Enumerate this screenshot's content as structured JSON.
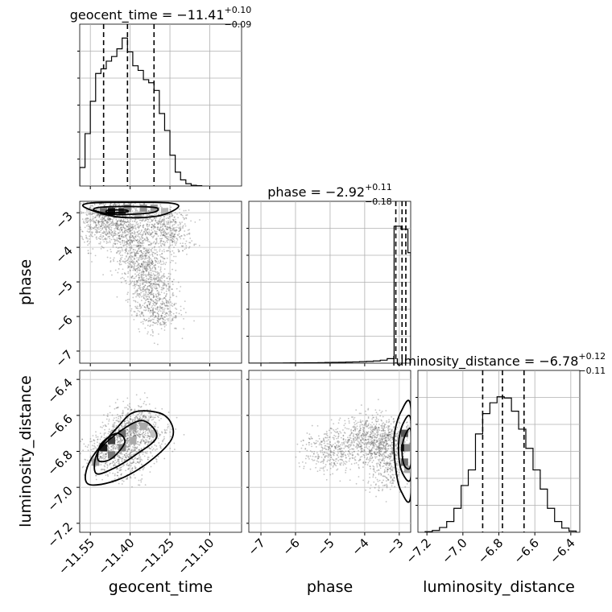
{
  "chart_data": {
    "type": "scatter",
    "subtype": "corner-plot",
    "grid": true,
    "parameters": [
      {
        "name": "geocent_time",
        "title": {
          "prefix": "geocent_time = ",
          "value": "−11.41",
          "plus": "+0.10",
          "minus": "−0.09"
        },
        "range": [
          -11.59,
          -10.98
        ],
        "ticks": [
          -11.55,
          -11.4,
          -11.25,
          -11.1
        ],
        "tick_labels": [
          "−11.55",
          "−11.40",
          "−11.25",
          "−11.10"
        ],
        "quantiles": [
          -11.5,
          -11.41,
          -11.31
        ],
        "hist_edges": [
          -11.59,
          -11.57,
          -11.55,
          -11.53,
          -11.51,
          -11.49,
          -11.47,
          -11.45,
          -11.43,
          -11.41,
          -11.39,
          -11.37,
          -11.35,
          -11.33,
          -11.31,
          -11.29,
          -11.27,
          -11.25,
          -11.23,
          -11.21,
          -11.19,
          -11.17,
          -11.15,
          -11.13
        ],
        "hist_counts": [
          120,
          340,
          550,
          730,
          760,
          810,
          840,
          890,
          960,
          870,
          780,
          750,
          690,
          670,
          620,
          470,
          360,
          200,
          90,
          40,
          15,
          5,
          2
        ],
        "hist_max": 1050
      },
      {
        "name": "phase",
        "title": {
          "prefix": "phase = ",
          "value": "−2.92",
          "plus": "+0.11",
          "minus": "−0.18"
        },
        "range": [
          -7.35,
          -2.67
        ],
        "ticks": [
          -7,
          -6,
          -5,
          -4,
          -3
        ],
        "tick_labels": [
          "−7",
          "−6",
          "−5",
          "−4",
          "−3"
        ],
        "quantiles": [
          -3.1,
          -2.92,
          -2.81
        ],
        "hist_edges": [
          -7.35,
          -7.15,
          -6.95,
          -6.75,
          -6.55,
          -6.35,
          -6.15,
          -5.95,
          -5.75,
          -5.55,
          -5.35,
          -5.15,
          -4.95,
          -4.75,
          -4.55,
          -4.35,
          -4.15,
          -3.95,
          -3.75,
          -3.55,
          -3.35,
          -3.15,
          -2.95,
          -2.75,
          -2.67
        ],
        "hist_counts": [
          1,
          1,
          2,
          3,
          5,
          7,
          9,
          11,
          13,
          15,
          18,
          22,
          26,
          30,
          35,
          40,
          48,
          58,
          72,
          95,
          145,
          4400,
          4300,
          3550
        ],
        "hist_max": 5200
      },
      {
        "name": "luminosity_distance",
        "title": {
          "prefix": "luminosity_distance = ",
          "value": "−6.78",
          "plus": "+0.12",
          "minus": "−0.11"
        },
        "range": [
          -7.25,
          -6.35
        ],
        "ticks": [
          -7.2,
          -7.0,
          -6.8,
          -6.6,
          -6.4
        ],
        "tick_labels": [
          "−7.2",
          "−7.0",
          "−6.8",
          "−6.6",
          "−6.4"
        ],
        "quantiles": [
          -6.89,
          -6.78,
          -6.66
        ],
        "hist_edges": [
          -7.21,
          -7.17,
          -7.13,
          -7.09,
          -7.05,
          -7.01,
          -6.97,
          -6.93,
          -6.89,
          -6.85,
          -6.81,
          -6.77,
          -6.73,
          -6.69,
          -6.65,
          -6.61,
          -6.57,
          -6.53,
          -6.49,
          -6.45,
          -6.41,
          -6.37
        ],
        "hist_counts": [
          5,
          15,
          40,
          90,
          200,
          390,
          520,
          820,
          990,
          1080,
          1130,
          1120,
          1010,
          860,
          700,
          520,
          360,
          200,
          90,
          35,
          10
        ],
        "hist_max": 1350
      }
    ],
    "pair_density": [
      {
        "row": 1,
        "col": 0,
        "points": [
          {
            "x": -11.47,
            "y": -3.0,
            "w": 0.25
          },
          {
            "x": -11.43,
            "y": -2.95,
            "w": 0.2
          },
          {
            "x": -11.52,
            "y": -3.1,
            "w": 0.15
          },
          {
            "x": -11.33,
            "y": -3.15,
            "w": 0.15
          },
          {
            "x": -11.29,
            "y": -3.2,
            "w": 0.12
          },
          {
            "x": -11.25,
            "y": -3.6,
            "w": 0.35
          },
          {
            "x": -11.4,
            "y": -3.7,
            "w": 0.35
          },
          {
            "x": -11.36,
            "y": -4.3,
            "w": 0.4
          },
          {
            "x": -11.33,
            "y": -5.0,
            "w": 0.45
          },
          {
            "x": -11.3,
            "y": -5.8,
            "w": 0.4
          },
          {
            "x": -11.5,
            "y": -3.4,
            "w": 0.3
          }
        ],
        "cells": [
          {
            "x": -11.47,
            "y": -2.97,
            "v": 1.0
          },
          {
            "x": -11.43,
            "y": -2.97,
            "v": 0.85
          },
          {
            "x": -11.5,
            "y": -2.97,
            "v": 0.6
          },
          {
            "x": -11.41,
            "y": -2.87,
            "v": 0.5
          },
          {
            "x": -11.35,
            "y": -2.87,
            "v": 0.45
          },
          {
            "x": -11.31,
            "y": -2.87,
            "v": 0.4
          },
          {
            "x": -11.27,
            "y": -2.97,
            "v": 0.3
          },
          {
            "x": -11.37,
            "y": -3.07,
            "v": 0.3
          }
        ],
        "contours": [
          [
            {
              "x": -11.57,
              "y": -2.85
            },
            {
              "x": -11.55,
              "y": -2.72
            },
            {
              "x": -11.4,
              "y": -2.7
            },
            {
              "x": -11.25,
              "y": -2.72
            },
            {
              "x": -11.22,
              "y": -2.85
            },
            {
              "x": -11.3,
              "y": -3.1
            },
            {
              "x": -11.45,
              "y": -3.12
            }
          ],
          [
            {
              "x": -11.53,
              "y": -2.95
            },
            {
              "x": -11.52,
              "y": -2.85
            },
            {
              "x": -11.4,
              "y": -2.82
            },
            {
              "x": -11.3,
              "y": -2.86
            },
            {
              "x": -11.32,
              "y": -3.0
            },
            {
              "x": -11.45,
              "y": -3.05
            }
          ],
          [
            {
              "x": -11.49,
              "y": -2.98
            },
            {
              "x": -11.48,
              "y": -2.93
            },
            {
              "x": -11.42,
              "y": -2.92
            },
            {
              "x": -11.41,
              "y": -2.97
            },
            {
              "x": -11.46,
              "y": -3.0
            }
          ]
        ]
      },
      {
        "row": 2,
        "col": 0,
        "points": [
          {
            "x": -11.43,
            "y": -6.72,
            "w": 0.35
          },
          {
            "x": -11.38,
            "y": -6.65,
            "w": 0.3
          },
          {
            "x": -11.49,
            "y": -6.82,
            "w": 0.3
          },
          {
            "x": -11.33,
            "y": -6.7,
            "w": 0.25
          },
          {
            "x": -11.41,
            "y": -6.85,
            "w": 0.25
          }
        ],
        "cells": [
          {
            "x": -11.5,
            "y": -6.78,
            "v": 0.95
          },
          {
            "x": -11.47,
            "y": -6.74,
            "v": 0.8
          },
          {
            "x": -11.47,
            "y": -6.82,
            "v": 0.55
          },
          {
            "x": -11.43,
            "y": -6.7,
            "v": 0.6
          },
          {
            "x": -11.43,
            "y": -6.78,
            "v": 0.5
          },
          {
            "x": -11.39,
            "y": -6.66,
            "v": 0.4
          },
          {
            "x": -11.35,
            "y": -6.66,
            "v": 0.35
          },
          {
            "x": -11.39,
            "y": -6.74,
            "v": 0.35
          },
          {
            "x": -11.53,
            "y": -6.86,
            "v": 0.4
          },
          {
            "x": -11.31,
            "y": -6.7,
            "v": 0.25
          }
        ],
        "contours": [
          [
            {
              "x": -11.56,
              "y": -6.98
            },
            {
              "x": -11.55,
              "y": -6.85
            },
            {
              "x": -11.45,
              "y": -6.67
            },
            {
              "x": -11.38,
              "y": -6.58
            },
            {
              "x": -11.27,
              "y": -6.6
            },
            {
              "x": -11.24,
              "y": -6.72
            },
            {
              "x": -11.33,
              "y": -6.86
            },
            {
              "x": -11.45,
              "y": -6.96
            }
          ],
          [
            {
              "x": -11.53,
              "y": -6.92
            },
            {
              "x": -11.52,
              "y": -6.8
            },
            {
              "x": -11.43,
              "y": -6.68
            },
            {
              "x": -11.35,
              "y": -6.63
            },
            {
              "x": -11.3,
              "y": -6.72
            },
            {
              "x": -11.38,
              "y": -6.82
            },
            {
              "x": -11.47,
              "y": -6.9
            }
          ],
          [
            {
              "x": -11.52,
              "y": -6.85
            },
            {
              "x": -11.51,
              "y": -6.76
            },
            {
              "x": -11.45,
              "y": -6.7
            },
            {
              "x": -11.42,
              "y": -6.75
            },
            {
              "x": -11.47,
              "y": -6.84
            }
          ]
        ]
      },
      {
        "row": 2,
        "col": 1,
        "points": [
          {
            "x": -3.2,
            "y": -6.75,
            "w": 0.35
          },
          {
            "x": -3.6,
            "y": -6.75,
            "w": 0.3
          },
          {
            "x": -4.0,
            "y": -6.72,
            "w": 0.3
          },
          {
            "x": -4.6,
            "y": -6.78,
            "w": 0.25
          },
          {
            "x": -3.4,
            "y": -6.9,
            "w": 0.25
          },
          {
            "x": -5.3,
            "y": -6.8,
            "w": 0.2
          }
        ],
        "cells": [
          {
            "x": -2.85,
            "y": -6.78,
            "v": 0.95
          },
          {
            "x": -2.85,
            "y": -6.7,
            "v": 0.7
          },
          {
            "x": -2.85,
            "y": -6.86,
            "v": 0.6
          },
          {
            "x": -2.75,
            "y": -6.78,
            "v": 0.5
          },
          {
            "x": -2.75,
            "y": -6.9,
            "v": 0.35
          },
          {
            "x": -2.95,
            "y": -6.74,
            "v": 0.3
          }
        ],
        "contours": [
          [
            {
              "x": -2.67,
              "y": -6.55
            },
            {
              "x": -2.95,
              "y": -6.58
            },
            {
              "x": -3.15,
              "y": -6.72
            },
            {
              "x": -3.1,
              "y": -6.9
            },
            {
              "x": -2.95,
              "y": -7.02
            },
            {
              "x": -2.67,
              "y": -7.05
            }
          ],
          [
            {
              "x": -2.67,
              "y": -6.62
            },
            {
              "x": -2.9,
              "y": -6.65
            },
            {
              "x": -3.02,
              "y": -6.76
            },
            {
              "x": -2.95,
              "y": -6.9
            },
            {
              "x": -2.67,
              "y": -6.95
            }
          ],
          [
            {
              "x": -2.67,
              "y": -6.68
            },
            {
              "x": -2.85,
              "y": -6.72
            },
            {
              "x": -2.92,
              "y": -6.8
            },
            {
              "x": -2.85,
              "y": -6.88
            },
            {
              "x": -2.67,
              "y": -6.88
            }
          ]
        ]
      }
    ]
  }
}
